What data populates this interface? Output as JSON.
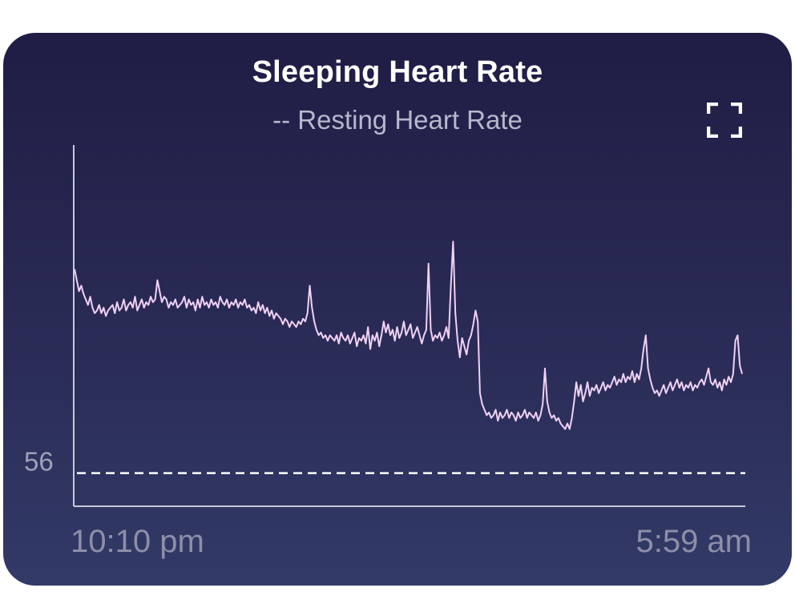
{
  "card": {
    "title": "Sleeping Heart Rate",
    "subtitle": "-- Resting Heart Rate",
    "expand_icon": "expand-icon"
  },
  "colors": {
    "card_top": "#1f1d45",
    "card_bottom": "#323a67",
    "line": "#f0d2f5",
    "reference": "#ffffff",
    "axis": "#c9cad8"
  },
  "chart_data": {
    "type": "line",
    "title": "Sleeping Heart Rate",
    "xlabel": "",
    "ylabel": "",
    "x_tick_labels": [
      "10:10 pm",
      "5:59 am"
    ],
    "reference_line": {
      "label": "56",
      "value": 56,
      "style": "dashed"
    },
    "ylim": [
      54.8,
      67.9
    ],
    "grid": false,
    "legend": "none",
    "series": [
      {
        "values": [
          63.4,
          63.0,
          62.6,
          62.8,
          62.5,
          62.3,
          62.1,
          62.4,
          62.0,
          61.8,
          61.9,
          62.1,
          61.8,
          62.0,
          61.7,
          61.9,
          62.0,
          62.1,
          61.8,
          62.2,
          61.9,
          62.0,
          62.3,
          61.9,
          62.1,
          62.2,
          62.0,
          62.4,
          61.9,
          62.1,
          62.3,
          62.0,
          62.2,
          62.1,
          62.4,
          62.2,
          62.3,
          63.0,
          62.6,
          62.2,
          62.4,
          62.3,
          62.0,
          62.2,
          62.1,
          62.3,
          62.0,
          62.1,
          62.2,
          62.4,
          62.0,
          62.3,
          62.1,
          62.2,
          61.9,
          62.3,
          62.0,
          62.4,
          62.1,
          62.2,
          62.0,
          62.3,
          62.1,
          62.2,
          62.0,
          62.4,
          62.2,
          62.1,
          62.3,
          62.0,
          62.2,
          62.1,
          62.3,
          62.0,
          62.2,
          62.1,
          62.3,
          62.0,
          62.1,
          61.9,
          62.0,
          61.8,
          62.2,
          61.9,
          62.1,
          61.8,
          62.0,
          61.7,
          61.9,
          61.6,
          61.8,
          61.7,
          61.6,
          61.4,
          61.6,
          61.5,
          61.3,
          61.5,
          61.4,
          61.3,
          61.5,
          61.4,
          61.6,
          61.5,
          61.8,
          62.8,
          62.0,
          61.5,
          61.2,
          61.0,
          61.1,
          60.9,
          61.0,
          60.8,
          61.0,
          60.9,
          60.8,
          61.0,
          60.7,
          61.1,
          60.9,
          60.8,
          61.0,
          60.7,
          60.9,
          61.1,
          60.6,
          60.9,
          60.8,
          61.0,
          60.7,
          61.3,
          60.5,
          61.0,
          60.8,
          61.1,
          60.6,
          61.0,
          61.5,
          61.1,
          61.4,
          61.0,
          61.2,
          60.8,
          61.3,
          60.9,
          61.1,
          61.5,
          61.0,
          61.2,
          61.4,
          60.9,
          61.1,
          61.3,
          61.0,
          60.7,
          61.0,
          61.2,
          63.6,
          61.2,
          60.8,
          61.0,
          60.9,
          61.1,
          60.8,
          61.0,
          61.3,
          60.9,
          62.8,
          64.4,
          61.8,
          60.8,
          60.2,
          60.9,
          60.6,
          60.3,
          60.8,
          61.0,
          61.4,
          61.9,
          61.5,
          58.9,
          58.5,
          58.3,
          58.1,
          58.2,
          58.0,
          58.1,
          58.3,
          57.9,
          58.2,
          58.0,
          58.1,
          58.3,
          58.0,
          58.2,
          58.1,
          57.9,
          58.2,
          58.0,
          58.1,
          58.3,
          58.0,
          58.2,
          58.1,
          58.0,
          58.2,
          57.9,
          58.1,
          58.5,
          59.8,
          58.6,
          58.2,
          58.0,
          58.1,
          57.9,
          58.0,
          57.8,
          57.7,
          57.6,
          57.8,
          57.6,
          58.0,
          58.6,
          59.3,
          58.8,
          59.2,
          58.6,
          58.9,
          59.3,
          58.8,
          59.1,
          59.0,
          59.2,
          58.9,
          59.1,
          59.3,
          59.0,
          59.2,
          59.1,
          59.3,
          59.5,
          59.2,
          59.4,
          59.3,
          59.6,
          59.3,
          59.5,
          59.4,
          59.7,
          59.3,
          59.6,
          59.4,
          59.8,
          60.5,
          61.0,
          59.8,
          59.4,
          59.1,
          58.9,
          59.0,
          58.8,
          59.0,
          59.2,
          58.9,
          59.1,
          59.3,
          59.0,
          59.2,
          59.4,
          59.1,
          59.3,
          59.0,
          59.2,
          59.1,
          59.3,
          59.0,
          59.2,
          59.1,
          59.3,
          59.4,
          59.2,
          59.5,
          59.8,
          59.3,
          59.2,
          59.4,
          59.1,
          59.3,
          59.0,
          59.4,
          59.2,
          59.5,
          59.3,
          59.6,
          60.8,
          61.0,
          59.9,
          59.6
        ]
      }
    ]
  }
}
